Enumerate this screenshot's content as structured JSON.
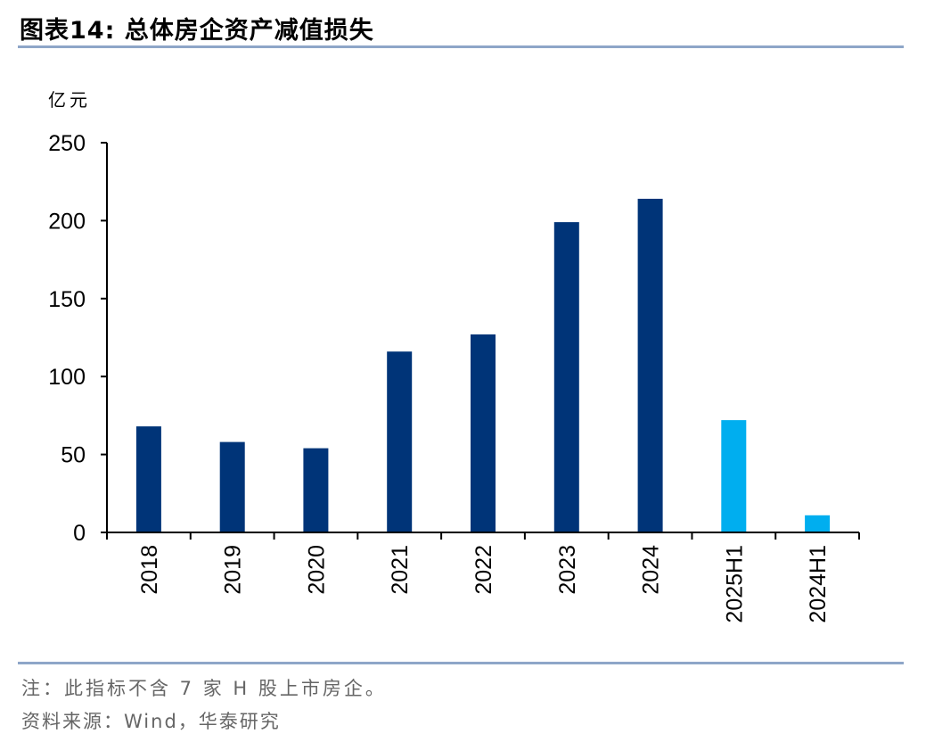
{
  "header": {
    "title": "图表14:  总体房企资产减值损失"
  },
  "footer": {
    "note": "注：此指标不含 7 家 H 股上市房企。",
    "source": "资料来源：Wind，华泰研究"
  },
  "chart_data": {
    "type": "bar",
    "title": "",
    "ylabel": "亿元",
    "xlabel": "",
    "categories": [
      "2018",
      "2019",
      "2020",
      "2021",
      "2022",
      "2023",
      "2024",
      "2025H1",
      "2024H1"
    ],
    "values": [
      68,
      58,
      54,
      116,
      127,
      199,
      214,
      72,
      11
    ],
    "ylim": [
      0,
      250
    ],
    "yticks": [
      0,
      50,
      100,
      150,
      200,
      250
    ],
    "grid": false,
    "colors": [
      "#003478",
      "#003478",
      "#003478",
      "#003478",
      "#003478",
      "#003478",
      "#003478",
      "#00aeef",
      "#00aeef"
    ]
  }
}
